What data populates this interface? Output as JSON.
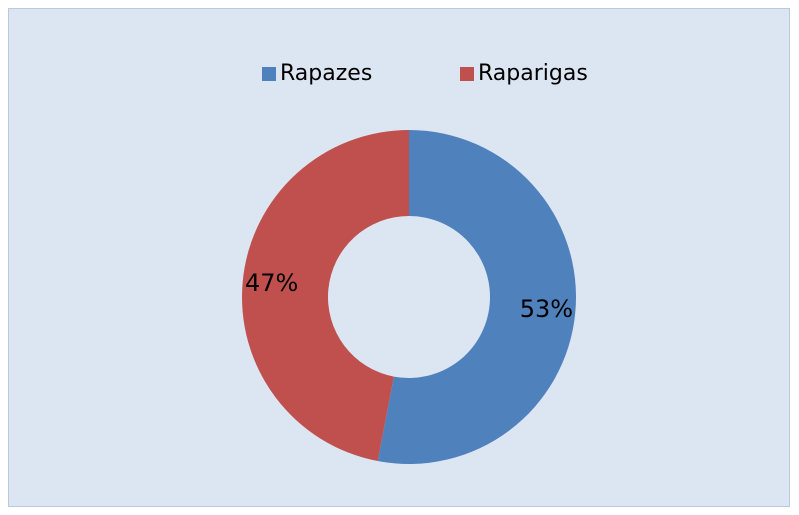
{
  "chart_data": {
    "type": "donut",
    "categories": [
      "Rapazes",
      "Raparigas"
    ],
    "values": [
      53,
      47
    ],
    "value_labels": [
      "53%",
      "47%"
    ],
    "colors": [
      "#4f81bd",
      "#c0504d"
    ],
    "legend": "top"
  }
}
